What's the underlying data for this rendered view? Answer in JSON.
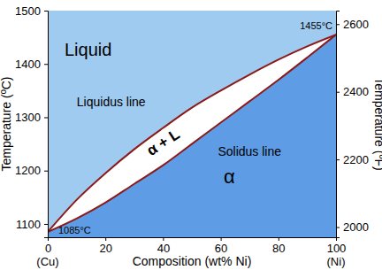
{
  "chart_data": {
    "type": "line",
    "x_label": "Composition (wt% Ni)",
    "y_label": "Temperature (ºC)",
    "y2_label": "Temperature (ºF)",
    "x": [
      0,
      10,
      20,
      30,
      40,
      50,
      60,
      70,
      80,
      90,
      100
    ],
    "series": [
      {
        "color": "#8b1a1a",
        "values": [
          1085,
          1145,
          1195,
          1240,
          1280,
          1318,
          1350,
          1380,
          1408,
          1433,
          1455
        ]
      },
      {
        "color": "#8b1a1a",
        "values": [
          1085,
          1110,
          1140,
          1175,
          1210,
          1250,
          1290,
          1330,
          1370,
          1412,
          1455
        ]
      }
    ],
    "regions": [
      {
        "label": "Liquid",
        "color": "#a0cbf0"
      },
      {
        "label": "α + L",
        "color": "#ffffff"
      },
      {
        "label": "α",
        "color": "#5e9de5"
      }
    ],
    "annotations": [
      "Liquidus line",
      "Solidus line",
      "1085°C",
      "1455°C",
      "(Cu)",
      "(Ni)"
    ],
    "xlim": [
      0,
      100
    ],
    "xticks": [
      0,
      20,
      40,
      60,
      80,
      100
    ],
    "ylim": [
      1075,
      1500
    ],
    "yticks": [
      1100,
      1200,
      1300,
      1400,
      1500
    ],
    "y2lim": [
      1970,
      2640
    ],
    "y2ticks": [
      2000,
      2200,
      2400,
      2600
    ]
  }
}
